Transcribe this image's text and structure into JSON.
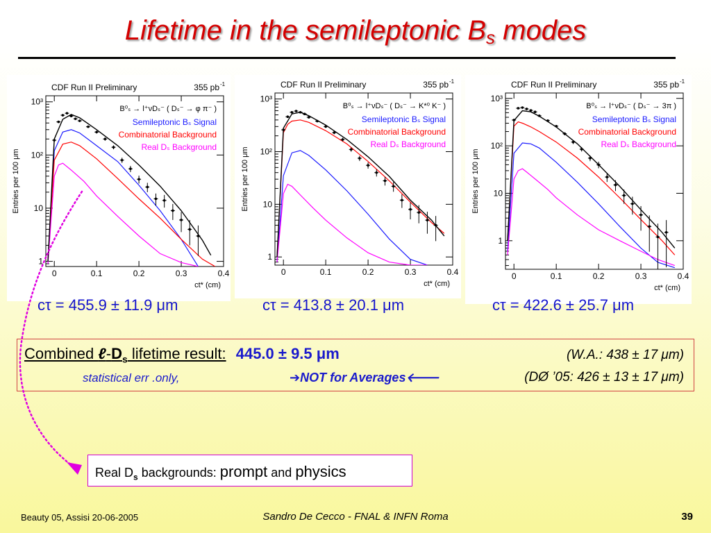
{
  "slide": {
    "title_main": "Lifetime in the semileptonic B",
    "title_sub": "s",
    "title_end": " modes",
    "footer_left": "Beauty 05, Assisi 20-06-2005",
    "footer_center": "Sandro De Cecco - FNAL & INFN Roma",
    "footer_right": "39"
  },
  "results": {
    "ctau": [
      "cτ = 455.9 ± 11.9 μm",
      "cτ = 413.8 ± 20.1 μm",
      "cτ = 422.6 ± 25.7 μm"
    ],
    "combined_pre": "Combined ",
    "combined_l": "ℓ",
    "combined_dash": "-",
    "combined_D": "D",
    "combined_s": "s",
    "combined_post": " lifetime result:",
    "combined_value": "445.0 ± 9.5 μm",
    "wa": "(W.A.: 438 ± 17 μm)",
    "stat_note": "statistical err .only,",
    "not_avg": "➔NOT for Averages🡐",
    "d0": "(DØ ’05:  426 ± 13 ± 17 μm)"
  },
  "note": {
    "pre": "Real D",
    "sub": "s",
    "mid": " backgrounds: ",
    "prompt": "prompt",
    "and": " and ",
    "physics": "physics"
  },
  "colors": {
    "title": "#d40000",
    "signal": "#1a1aff",
    "combinatorial": "#ff0000",
    "real_ds": "#ff00ff",
    "fit": "#000000",
    "accent_blue": "#1a1acc"
  },
  "chart_data": [
    {
      "type": "scatter",
      "header": "CDF Run II Preliminary",
      "lumi": "355 pb",
      "lumi_sup": "-1",
      "decay": "B⁰ₛ → l⁺νDₛ⁻ ( Dₛ⁻ → φ π⁻ )",
      "xlabel": "ct* (cm)",
      "ylabel": "Entries per 100 μm",
      "log_y": true,
      "xlim": [
        -0.02,
        0.4
      ],
      "ylim": [
        0.8,
        1300
      ],
      "xticks": [
        "0",
        "0.1",
        "0.2",
        "0.3",
        "0.4"
      ],
      "yticks": [
        {
          "v": 1000,
          "l": "10³"
        },
        {
          "v": 100,
          "l": "10²"
        },
        {
          "v": 10,
          "l": "10"
        },
        {
          "v": 1,
          "l": "1"
        }
      ],
      "legend": [
        "Semileptonic Bₛ Signal",
        "Combinatorial Background",
        "Real Dₛ Background"
      ],
      "series": [
        {
          "name": "Semileptonic Bₛ Signal",
          "color": "#1a1aff",
          "x": [
            -0.015,
            0.0,
            0.02,
            0.04,
            0.06,
            0.1,
            0.15,
            0.2,
            0.25,
            0.3,
            0.34
          ],
          "y": [
            0.9,
            120,
            270,
            300,
            260,
            150,
            75,
            27,
            9,
            2.6,
            0.8
          ]
        },
        {
          "name": "Combinatorial Background",
          "color": "#ff0000",
          "x": [
            -0.015,
            0.0,
            0.02,
            0.04,
            0.06,
            0.1,
            0.15,
            0.2,
            0.25,
            0.3,
            0.35,
            0.38
          ],
          "y": [
            1,
            80,
            160,
            175,
            150,
            85,
            36,
            15,
            6.5,
            2.6,
            1.1,
            0.8
          ]
        },
        {
          "name": "Real Dₛ Background",
          "color": "#ff00ff",
          "x": [
            -0.015,
            0.0,
            0.01,
            0.02,
            0.04,
            0.07,
            0.1,
            0.15,
            0.2,
            0.25,
            0.3,
            0.34
          ],
          "y": [
            0.9,
            40,
            65,
            70,
            52,
            32,
            17,
            7,
            3,
            1.4,
            0.95,
            0.8
          ]
        },
        {
          "name": "Fit",
          "color": "#000000",
          "x": [
            -0.015,
            0.0,
            0.02,
            0.04,
            0.06,
            0.1,
            0.15,
            0.2,
            0.25,
            0.3,
            0.35,
            0.37
          ],
          "y": [
            1,
            200,
            470,
            580,
            500,
            300,
            150,
            65,
            26,
            9,
            2.5,
            1.3
          ]
        },
        {
          "name": "Data",
          "color": "#000000",
          "markers": true,
          "x": [
            0.0,
            0.01,
            0.02,
            0.03,
            0.04,
            0.05,
            0.06,
            0.08,
            0.1,
            0.12,
            0.14,
            0.16,
            0.18,
            0.2,
            0.22,
            0.24,
            0.26,
            0.28,
            0.3,
            0.32,
            0.34
          ],
          "y": [
            190,
            420,
            560,
            610,
            540,
            480,
            440,
            340,
            270,
            200,
            140,
            80,
            55,
            35,
            25,
            15,
            14,
            9,
            6,
            4,
            3
          ]
        }
      ]
    },
    {
      "type": "scatter",
      "header": "CDF Run II Preliminary",
      "lumi": "355 pb",
      "lumi_sup": "-1",
      "decay": "B⁰ₛ → l⁺νDₛ⁻ ( Dₛ⁻ → K*⁰ K⁻ )",
      "xlabel": "ct* (cm)",
      "ylabel": "Entries per 100 μm",
      "log_y": true,
      "xlim": [
        -0.02,
        0.4
      ],
      "ylim": [
        0.7,
        1300
      ],
      "xticks": [
        "0",
        "0.1",
        "0.2",
        "0.3",
        "0.4"
      ],
      "yticks": [
        {
          "v": 1000,
          "l": "10³"
        },
        {
          "v": 100,
          "l": "10²"
        },
        {
          "v": 10,
          "l": "10"
        },
        {
          "v": 1,
          "l": "1"
        }
      ],
      "legend": [
        "Semileptonic Bₛ Signal",
        "Combinatorial Background",
        "Real Dₛ Background"
      ],
      "series": [
        {
          "name": "Semileptonic Bₛ Signal",
          "color": "#1a1aff",
          "x": [
            -0.015,
            0.0,
            0.02,
            0.04,
            0.06,
            0.1,
            0.15,
            0.2,
            0.25,
            0.3,
            0.34
          ],
          "y": [
            0.8,
            35,
            95,
            105,
            85,
            45,
            18,
            6.5,
            2.2,
            0.9,
            0.7
          ]
        },
        {
          "name": "Combinatorial Background",
          "color": "#ff0000",
          "x": [
            -0.015,
            0.0,
            0.01,
            0.02,
            0.04,
            0.06,
            0.1,
            0.15,
            0.2,
            0.25,
            0.3,
            0.35,
            0.38
          ],
          "y": [
            1,
            230,
            330,
            380,
            400,
            360,
            250,
            140,
            65,
            28,
            11,
            4.5,
            2.8
          ]
        },
        {
          "name": "Real Dₛ Background",
          "color": "#ff00ff",
          "x": [
            -0.015,
            0.0,
            0.01,
            0.02,
            0.04,
            0.07,
            0.1,
            0.15,
            0.2,
            0.25,
            0.3,
            0.34
          ],
          "y": [
            0.8,
            16,
            24,
            22,
            15,
            8.5,
            5,
            2.3,
            1.2,
            0.8,
            0.7,
            0.7
          ]
        },
        {
          "name": "Fit",
          "color": "#000000",
          "x": [
            -0.015,
            0.0,
            0.02,
            0.04,
            0.06,
            0.1,
            0.15,
            0.2,
            0.25,
            0.3,
            0.35,
            0.38
          ],
          "y": [
            1,
            280,
            520,
            560,
            480,
            320,
            170,
            80,
            34,
            12,
            5,
            2.5
          ]
        },
        {
          "name": "Data",
          "color": "#000000",
          "markers": true,
          "x": [
            0.0,
            0.01,
            0.02,
            0.03,
            0.04,
            0.05,
            0.06,
            0.08,
            0.1,
            0.12,
            0.14,
            0.16,
            0.18,
            0.2,
            0.22,
            0.24,
            0.26,
            0.28,
            0.3,
            0.32,
            0.34,
            0.36
          ],
          "y": [
            260,
            460,
            560,
            590,
            560,
            520,
            450,
            380,
            300,
            230,
            170,
            110,
            75,
            55,
            40,
            28,
            22,
            12,
            8,
            7,
            5,
            4
          ]
        }
      ]
    },
    {
      "type": "scatter",
      "header": "CDF Run II Preliminary",
      "lumi": "355 pb",
      "lumi_sup": "-1",
      "decay": "B⁰ₛ → l⁺νDₛ⁻ ( Dₛ⁻ → 3π )",
      "xlabel": "ct* (cm)",
      "ylabel": "Entries per 100 μm",
      "log_y": true,
      "xlim": [
        -0.02,
        0.4
      ],
      "ylim": [
        0.25,
        1300
      ],
      "xticks": [
        "0",
        "0.1",
        "0.2",
        "0.3",
        "0.4"
      ],
      "yticks": [
        {
          "v": 1000,
          "l": "10³"
        },
        {
          "v": 100,
          "l": "10²"
        },
        {
          "v": 10,
          "l": "10"
        },
        {
          "v": 1,
          "l": "1"
        }
      ],
      "legend": [
        "Semileptonic Bₛ Signal",
        "Combinatorial Background",
        "Real Dₛ Background"
      ],
      "series": [
        {
          "name": "Semileptonic Bₛ Signal",
          "color": "#1a1aff",
          "x": [
            -0.015,
            0.0,
            0.02,
            0.04,
            0.06,
            0.1,
            0.15,
            0.2,
            0.25,
            0.3,
            0.34,
            0.38
          ],
          "y": [
            0.6,
            70,
            115,
            110,
            90,
            45,
            17,
            6,
            2,
            0.7,
            0.35,
            0.27
          ]
        },
        {
          "name": "Combinatorial Background",
          "color": "#ff0000",
          "x": [
            -0.015,
            0.0,
            0.01,
            0.02,
            0.04,
            0.06,
            0.1,
            0.15,
            0.2,
            0.25,
            0.3,
            0.35,
            0.38
          ],
          "y": [
            1,
            260,
            320,
            300,
            250,
            200,
            120,
            55,
            22,
            8,
            2.8,
            1,
            0.5
          ]
        },
        {
          "name": "Real Dₛ Background",
          "color": "#ff00ff",
          "x": [
            -0.015,
            0.0,
            0.01,
            0.02,
            0.03,
            0.05,
            0.08,
            0.1,
            0.15,
            0.2,
            0.25,
            0.3,
            0.34,
            0.38
          ],
          "y": [
            0.5,
            20,
            30,
            33,
            28,
            20,
            12,
            8,
            3.5,
            1.7,
            1,
            0.6,
            0.4,
            0.3
          ]
        },
        {
          "name": "Fit",
          "color": "#000000",
          "x": [
            -0.015,
            0.0,
            0.02,
            0.04,
            0.06,
            0.1,
            0.15,
            0.2,
            0.25,
            0.3,
            0.35,
            0.38
          ],
          "y": [
            1,
            340,
            550,
            520,
            420,
            250,
            110,
            40,
            14,
            4.5,
            1.5,
            0.7
          ]
        },
        {
          "name": "Data",
          "color": "#000000",
          "markers": true,
          "x": [
            0.0,
            0.01,
            0.02,
            0.03,
            0.04,
            0.05,
            0.06,
            0.08,
            0.1,
            0.12,
            0.14,
            0.16,
            0.18,
            0.2,
            0.22,
            0.24,
            0.26,
            0.28,
            0.3,
            0.32,
            0.34,
            0.36
          ],
          "y": [
            350,
            620,
            640,
            600,
            560,
            520,
            430,
            340,
            260,
            180,
            120,
            85,
            55,
            40,
            22,
            15,
            9,
            6,
            3.5,
            2,
            1.2,
            1.5
          ]
        }
      ]
    }
  ]
}
